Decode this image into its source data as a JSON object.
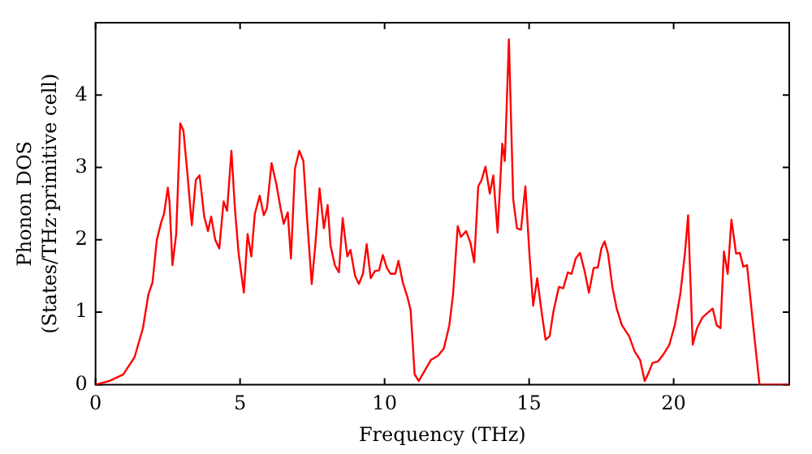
{
  "chart_data": {
    "type": "line",
    "xlabel": "Frequency (THz)",
    "ylabel": "Phonon DOS\n(States/THz·primitive cell)",
    "x": [
      0,
      0.48,
      0.96,
      1.35,
      1.64,
      1.83,
      1.97,
      2.12,
      2.27,
      2.37,
      2.5,
      2.56,
      2.66,
      2.79,
      2.93,
      3.04,
      3.18,
      3.33,
      3.47,
      3.6,
      3.76,
      3.89,
      4.0,
      4.14,
      4.28,
      4.43,
      4.55,
      4.7,
      4.82,
      4.95,
      5.13,
      5.26,
      5.39,
      5.51,
      5.68,
      5.82,
      5.93,
      6.09,
      6.26,
      6.4,
      6.51,
      6.65,
      6.76,
      6.9,
      7.05,
      7.19,
      7.32,
      7.48,
      7.61,
      7.75,
      7.9,
      8.03,
      8.13,
      8.28,
      8.42,
      8.55,
      8.71,
      8.82,
      8.98,
      9.11,
      9.25,
      9.38,
      9.52,
      9.67,
      9.81,
      9.94,
      10.08,
      10.21,
      10.37,
      10.48,
      10.63,
      10.79,
      10.9,
      11.04,
      11.18,
      11.37,
      11.6,
      11.85,
      12.05,
      12.24,
      12.37,
      12.53,
      12.64,
      12.82,
      12.97,
      13.1,
      13.24,
      13.35,
      13.49,
      13.64,
      13.76,
      13.91,
      14.07,
      14.16,
      14.3,
      14.45,
      14.58,
      14.72,
      14.87,
      15.01,
      15.14,
      15.28,
      15.43,
      15.57,
      15.71,
      15.84,
      16.03,
      16.18,
      16.34,
      16.47,
      16.61,
      16.76,
      16.92,
      17.07,
      17.23,
      17.38,
      17.5,
      17.61,
      17.73,
      17.88,
      18.03,
      18.21,
      18.46,
      18.65,
      18.84,
      19.0,
      19.13,
      19.27,
      19.46,
      19.65,
      19.85,
      20.04,
      20.23,
      20.39,
      20.5,
      20.66,
      20.81,
      21.0,
      21.2,
      21.35,
      21.49,
      21.62,
      21.74,
      21.87,
      22.0,
      22.16,
      22.29,
      22.41,
      22.54,
      22.74,
      22.97,
      24
    ],
    "series": [
      {
        "color": "#ff0000",
        "values": [
          0,
          0.05,
          0.14,
          0.38,
          0.78,
          1.25,
          1.41,
          2.0,
          2.24,
          2.36,
          2.72,
          2.52,
          1.65,
          2.08,
          3.61,
          3.51,
          2.91,
          2.2,
          2.83,
          2.89,
          2.32,
          2.12,
          2.32,
          2.0,
          1.88,
          2.53,
          2.4,
          3.23,
          2.44,
          1.81,
          1.27,
          2.08,
          1.77,
          2.36,
          2.61,
          2.34,
          2.44,
          3.06,
          2.76,
          2.44,
          2.22,
          2.38,
          1.74,
          2.99,
          3.23,
          3.09,
          2.28,
          1.39,
          1.96,
          2.71,
          2.16,
          2.48,
          1.92,
          1.65,
          1.55,
          2.3,
          1.77,
          1.86,
          1.5,
          1.39,
          1.53,
          1.94,
          1.47,
          1.57,
          1.58,
          1.79,
          1.61,
          1.53,
          1.53,
          1.71,
          1.41,
          1.21,
          1.03,
          0.14,
          0.05,
          0.18,
          0.34,
          0.4,
          0.5,
          0.82,
          1.25,
          2.19,
          2.04,
          2.12,
          1.96,
          1.69,
          2.74,
          2.82,
          3.01,
          2.64,
          2.89,
          2.1,
          3.33,
          3.09,
          4.77,
          2.56,
          2.16,
          2.14,
          2.74,
          1.81,
          1.09,
          1.47,
          1.01,
          0.62,
          0.67,
          1.01,
          1.35,
          1.33,
          1.55,
          1.53,
          1.74,
          1.82,
          1.57,
          1.27,
          1.61,
          1.62,
          1.88,
          1.98,
          1.81,
          1.35,
          1.05,
          0.82,
          0.67,
          0.46,
          0.34,
          0.05,
          0.16,
          0.3,
          0.32,
          0.42,
          0.55,
          0.82,
          1.25,
          1.81,
          2.34,
          0.55,
          0.78,
          0.93,
          1.0,
          1.05,
          0.82,
          0.78,
          1.84,
          1.53,
          2.28,
          1.81,
          1.82,
          1.63,
          1.65,
          0.86,
          0,
          0
        ]
      }
    ],
    "xlim": [
      0,
      24
    ],
    "xticks": [
      0,
      5,
      10,
      15,
      20
    ],
    "ylim": [
      0,
      5
    ],
    "yticks": [
      0,
      1,
      2,
      3,
      4
    ],
    "grid": false,
    "legend": false,
    "marker": "none",
    "line_style": "solid"
  }
}
